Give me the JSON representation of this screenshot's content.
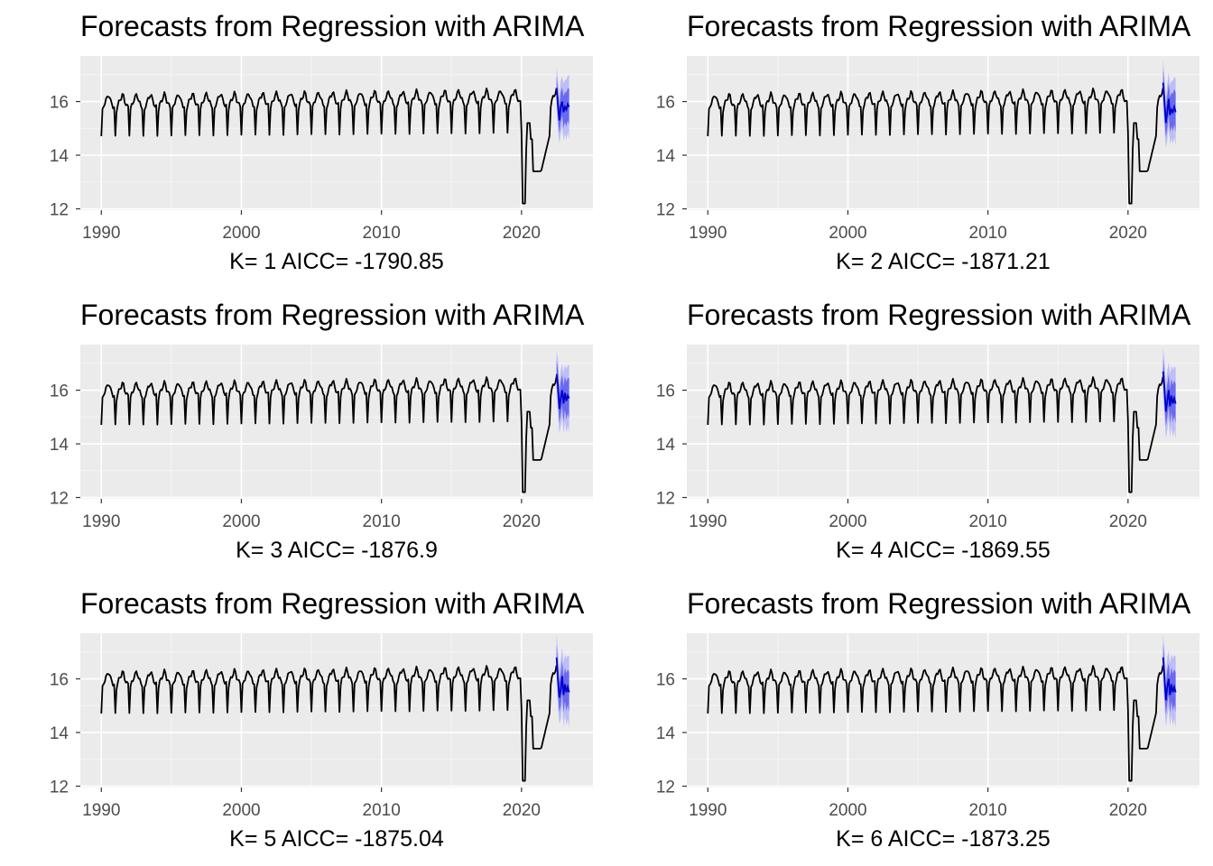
{
  "colors": {
    "panel_bg": "#EBEBEB",
    "major_grid": "#FFFFFF",
    "minor_grid": "#F5F5F5",
    "history_line": "#000000",
    "forecast_line": "#0000CC",
    "pi80": "#6A6AF0",
    "pi95": "#BDBDF7",
    "tick_text": "#4D4D4D"
  },
  "layout_cols": 2,
  "chart_data": [
    {
      "type": "line",
      "title": "Forecasts from Regression with ARIMA",
      "xlabel": "K= 1    AICC= -1790.85",
      "xlim": [
        1988.5,
        2025.1
      ],
      "ylim": [
        11.95,
        17.7
      ],
      "x_ticks": [
        "1990",
        "2000",
        "2010",
        "2020"
      ],
      "y_ticks": [
        "12",
        "14",
        "16"
      ],
      "history": {
        "start": 1990.0,
        "end": 2022.5,
        "base": 15.8,
        "seasonal_amp": 0.45,
        "trough": 14.7,
        "trend_per_year": 0.006
      },
      "covid": {
        "start": 2020.05,
        "min": 12.2,
        "recovery": 2021.4,
        "recovery_level": 13.4
      },
      "forecast": {
        "start": 2022.5,
        "end": 2023.4,
        "values": [
          16.5,
          15.9,
          15.3,
          15.8,
          16.0,
          15.6,
          15.8,
          15.7,
          15.9,
          15.8
        ],
        "pi80_halfwidth": 0.45,
        "pi95_halfwidth": 0.8
      }
    },
    {
      "type": "line",
      "title": "Forecasts from Regression with ARIMA",
      "xlabel": "K= 2    AICC= -1871.21",
      "xlim": [
        1988.5,
        2025.1
      ],
      "ylim": [
        11.95,
        17.7
      ],
      "x_ticks": [
        "1990",
        "2000",
        "2010",
        "2020"
      ],
      "y_ticks": [
        "12",
        "14",
        "16"
      ],
      "history": {
        "start": 1990.0,
        "end": 2022.5,
        "base": 15.8,
        "seasonal_amp": 0.45,
        "trough": 14.7,
        "trend_per_year": 0.006
      },
      "covid": {
        "start": 2020.05,
        "min": 12.2,
        "recovery": 2021.4,
        "recovery_level": 13.4
      },
      "forecast": {
        "start": 2022.5,
        "end": 2023.4,
        "values": [
          16.7,
          16.0,
          15.2,
          15.6,
          16.1,
          15.5,
          15.7,
          15.6,
          15.8,
          15.6
        ],
        "pi80_halfwidth": 0.5,
        "pi95_halfwidth": 0.85
      }
    },
    {
      "type": "line",
      "title": "Forecasts from Regression with ARIMA",
      "xlabel": "K= 3    AICC= -1876.9",
      "xlim": [
        1988.5,
        2025.1
      ],
      "ylim": [
        11.95,
        17.7
      ],
      "x_ticks": [
        "1990",
        "2000",
        "2010",
        "2020"
      ],
      "y_ticks": [
        "12",
        "14",
        "16"
      ],
      "history": {
        "start": 1990.0,
        "end": 2022.5,
        "base": 15.8,
        "seasonal_amp": 0.45,
        "trough": 14.7,
        "trend_per_year": 0.006
      },
      "covid": {
        "start": 2020.05,
        "min": 12.2,
        "recovery": 2021.4,
        "recovery_level": 13.4
      },
      "forecast": {
        "start": 2022.5,
        "end": 2023.4,
        "values": [
          16.6,
          16.2,
          15.3,
          15.7,
          16.0,
          15.5,
          15.9,
          15.6,
          15.8,
          15.7
        ],
        "pi80_halfwidth": 0.5,
        "pi95_halfwidth": 0.85
      }
    },
    {
      "type": "line",
      "title": "Forecasts from Regression with ARIMA",
      "xlabel": "K= 4    AICC= -1869.55",
      "xlim": [
        1988.5,
        2025.1
      ],
      "ylim": [
        11.95,
        17.7
      ],
      "x_ticks": [
        "1990",
        "2000",
        "2010",
        "2020"
      ],
      "y_ticks": [
        "12",
        "14",
        "16"
      ],
      "history": {
        "start": 1990.0,
        "end": 2022.5,
        "base": 15.8,
        "seasonal_amp": 0.45,
        "trough": 14.7,
        "trend_per_year": 0.006
      },
      "covid": {
        "start": 2020.05,
        "min": 12.2,
        "recovery": 2021.4,
        "recovery_level": 13.4
      },
      "forecast": {
        "start": 2022.5,
        "end": 2023.4,
        "values": [
          16.7,
          16.1,
          15.2,
          15.6,
          16.0,
          15.4,
          15.8,
          15.5,
          15.7,
          15.5
        ],
        "pi80_halfwidth": 0.5,
        "pi95_halfwidth": 0.9
      }
    },
    {
      "type": "line",
      "title": "Forecasts from Regression with ARIMA",
      "xlabel": "K= 5    AICC= -1875.04",
      "xlim": [
        1988.5,
        2025.1
      ],
      "ylim": [
        11.95,
        17.7
      ],
      "x_ticks": [
        "1990",
        "2000",
        "2010",
        "2020"
      ],
      "y_ticks": [
        "12",
        "14",
        "16"
      ],
      "history": {
        "start": 1990.0,
        "end": 2022.5,
        "base": 15.8,
        "seasonal_amp": 0.45,
        "trough": 14.7,
        "trend_per_year": 0.006
      },
      "covid": {
        "start": 2020.05,
        "min": 12.2,
        "recovery": 2021.4,
        "recovery_level": 13.4
      },
      "forecast": {
        "start": 2022.5,
        "end": 2023.4,
        "values": [
          16.8,
          16.0,
          15.3,
          15.6,
          16.1,
          15.4,
          15.8,
          15.5,
          15.7,
          15.5
        ],
        "pi80_halfwidth": 0.5,
        "pi95_halfwidth": 0.9
      }
    },
    {
      "type": "line",
      "title": "Forecasts from Regression with ARIMA",
      "xlabel": "K= 6    AICC= -1873.25",
      "xlim": [
        1988.5,
        2025.1
      ],
      "ylim": [
        11.95,
        17.7
      ],
      "x_ticks": [
        "1990",
        "2000",
        "2010",
        "2020"
      ],
      "y_ticks": [
        "12",
        "14",
        "16"
      ],
      "history": {
        "start": 1990.0,
        "end": 2022.5,
        "base": 15.8,
        "seasonal_amp": 0.45,
        "trough": 14.7,
        "trend_per_year": 0.006
      },
      "covid": {
        "start": 2020.05,
        "min": 12.2,
        "recovery": 2021.4,
        "recovery_level": 13.4
      },
      "forecast": {
        "start": 2022.5,
        "end": 2023.4,
        "values": [
          16.8,
          16.1,
          15.2,
          15.7,
          16.0,
          15.4,
          15.8,
          15.5,
          15.7,
          15.5
        ],
        "pi80_halfwidth": 0.5,
        "pi95_halfwidth": 0.9
      }
    }
  ]
}
